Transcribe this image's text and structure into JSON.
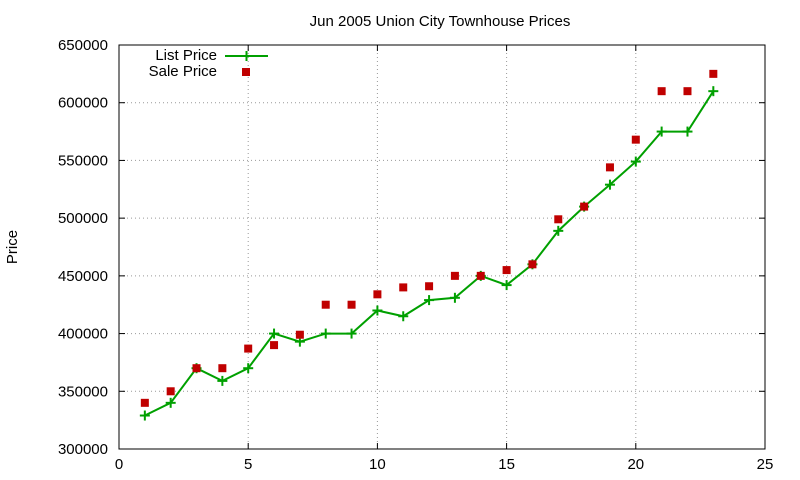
{
  "chart_data": {
    "type": "line",
    "title": "Jun 2005 Union City Townhouse Prices",
    "ylabel": "Price",
    "xlabel": "",
    "xlim": [
      0,
      25
    ],
    "ylim": [
      300000,
      650000
    ],
    "x_ticks": [
      0,
      5,
      10,
      15,
      20,
      25
    ],
    "y_ticks": [
      300000,
      350000,
      400000,
      450000,
      500000,
      550000,
      600000,
      650000
    ],
    "grid": true,
    "legend_position": "top-left",
    "x": [
      1,
      2,
      3,
      4,
      5,
      6,
      7,
      8,
      9,
      10,
      11,
      12,
      13,
      14,
      15,
      16,
      17,
      18,
      19,
      20,
      21,
      22,
      23
    ],
    "series": [
      {
        "name": "List Price",
        "style": "line-with-plus-markers",
        "color": "#00a000",
        "values": [
          329000,
          340000,
          370000,
          359000,
          370000,
          400000,
          393000,
          400000,
          400000,
          420000,
          415000,
          429000,
          431000,
          450000,
          442000,
          460000,
          489000,
          510000,
          529000,
          549000,
          575000,
          575000,
          610000
        ]
      },
      {
        "name": "Sale Price",
        "style": "square-markers",
        "color": "#c00000",
        "values": [
          340000,
          350000,
          370000,
          370000,
          387000,
          390000,
          399000,
          425000,
          425000,
          434000,
          440000,
          441000,
          450000,
          450000,
          455000,
          460000,
          499000,
          510000,
          544000,
          568000,
          610000,
          610000,
          625000
        ]
      }
    ]
  }
}
